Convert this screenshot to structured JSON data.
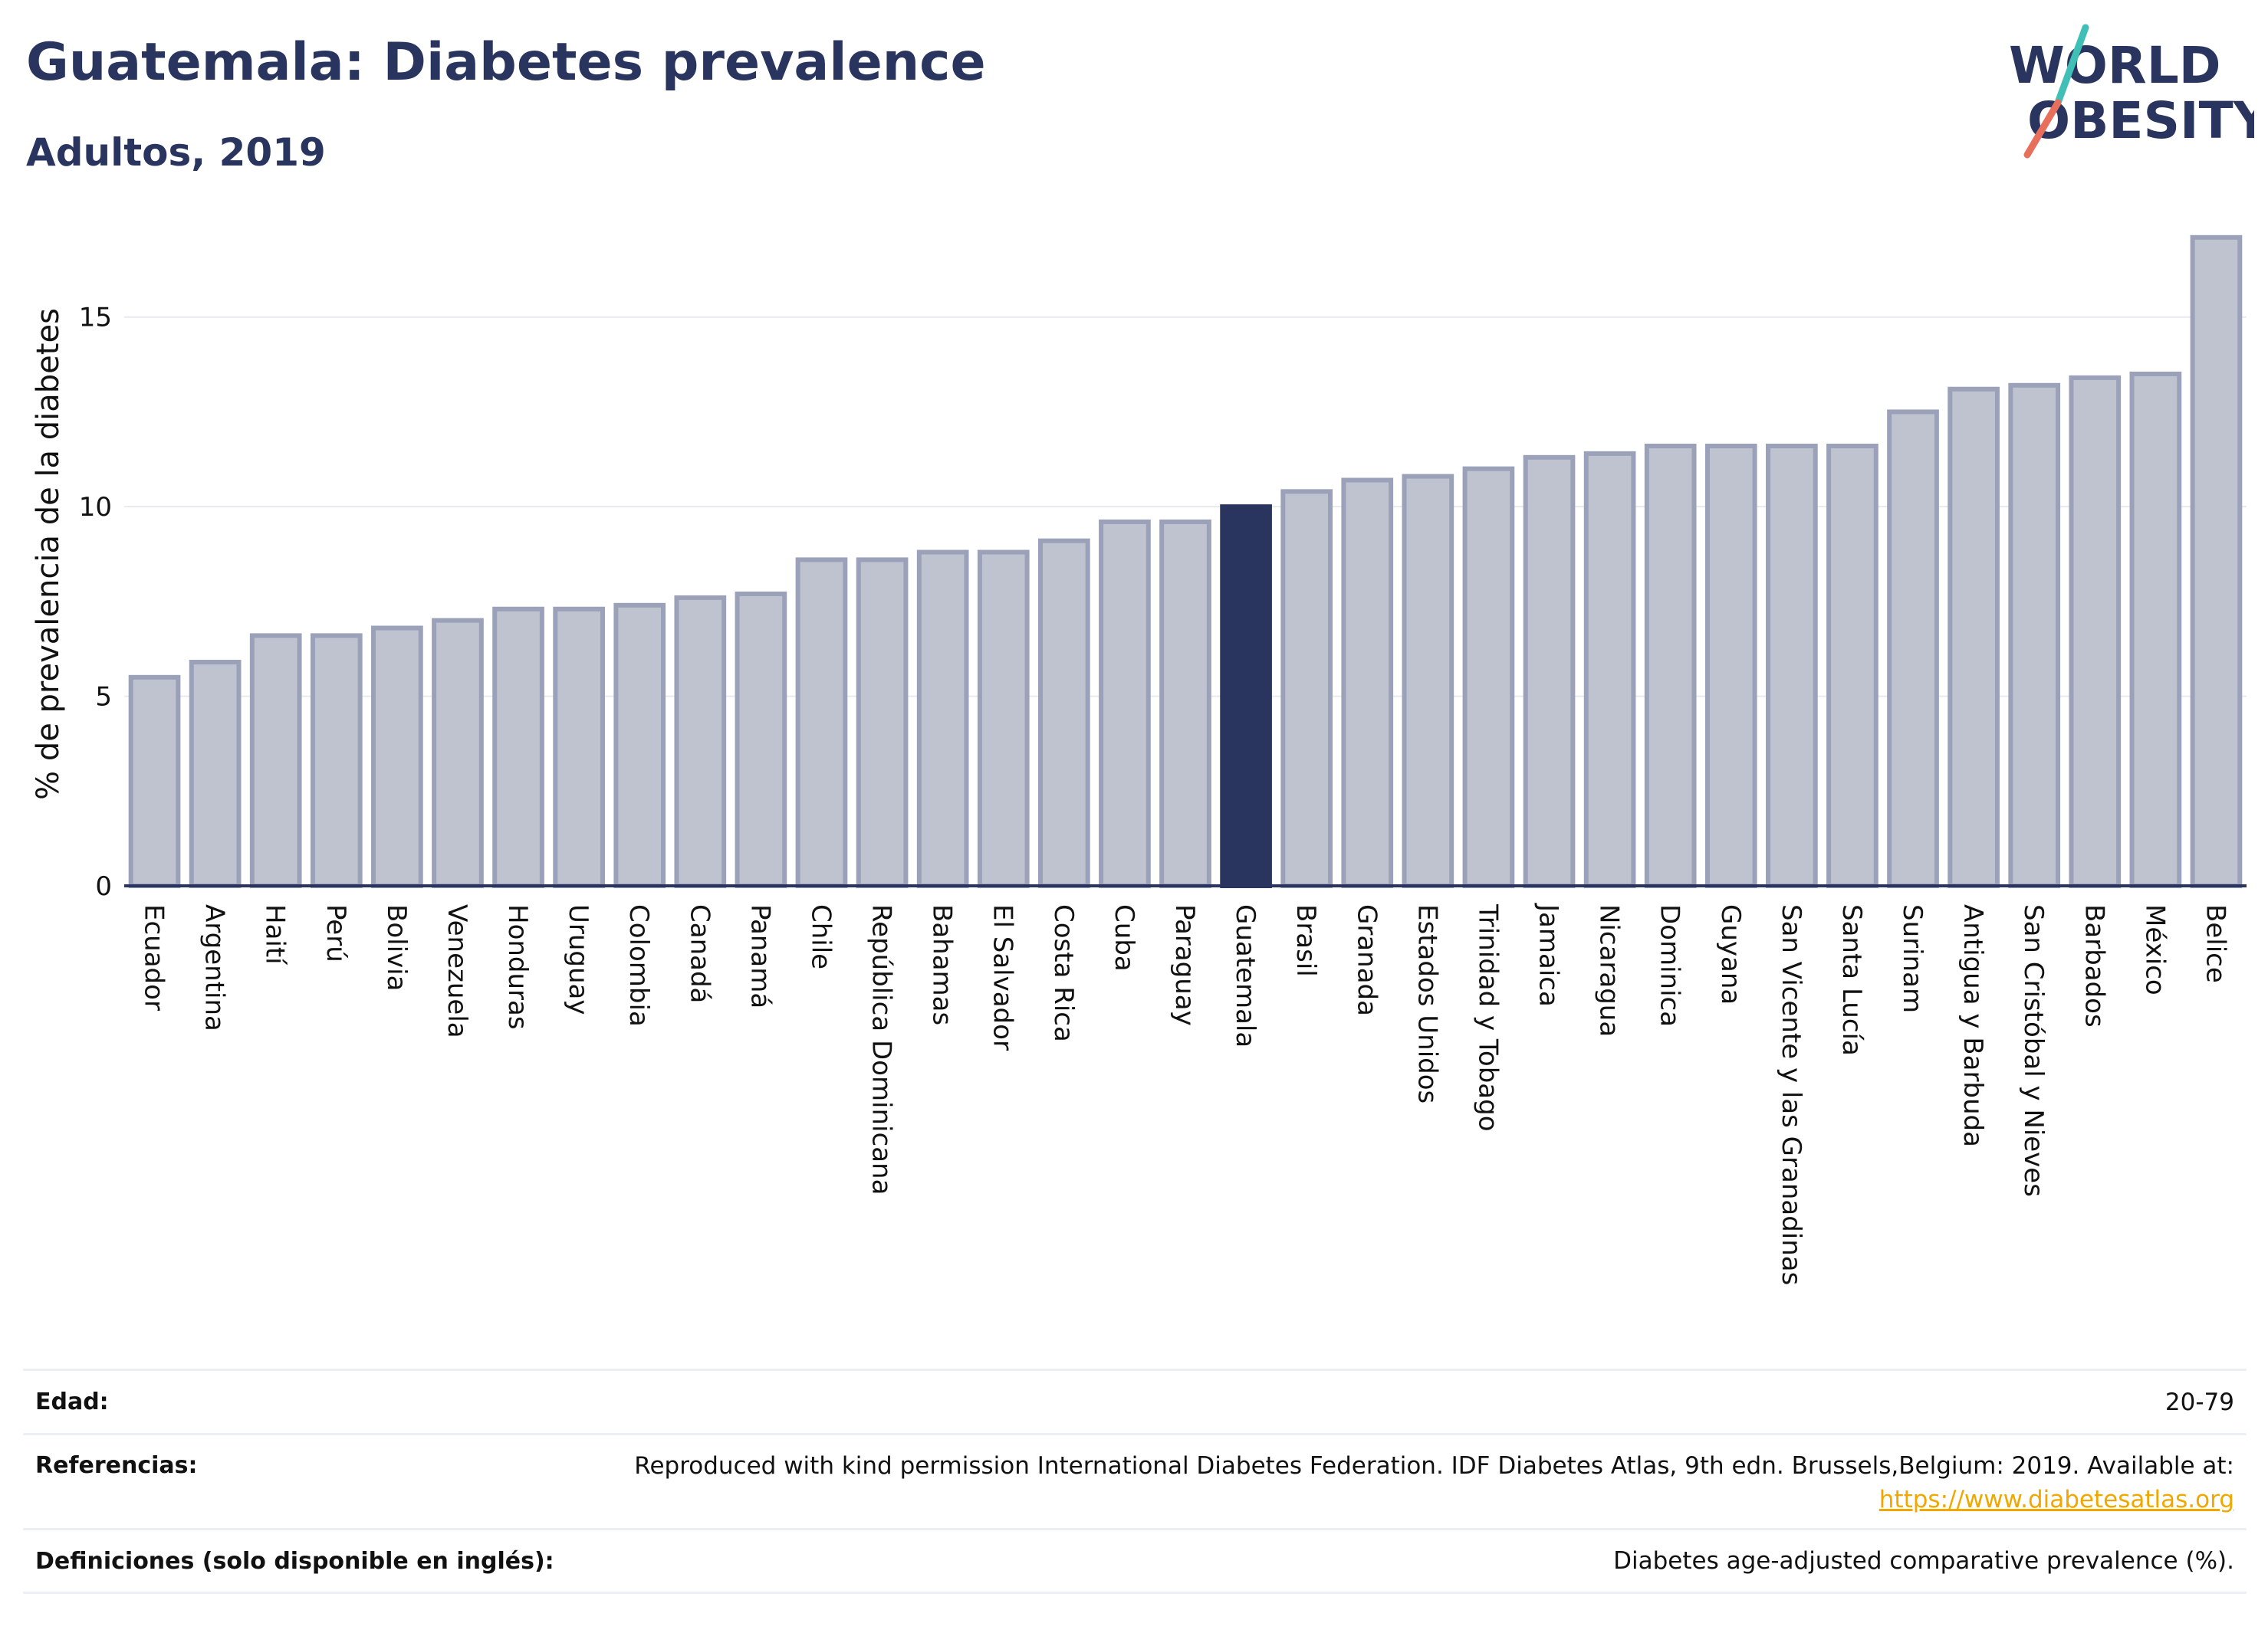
{
  "header": {
    "title": "Guatemala: Diabetes prevalence",
    "subtitle": "Adultos, 2019"
  },
  "logo": {
    "line1": "WORLD",
    "line2": "OBESITY",
    "colors": {
      "text": "#2a355f",
      "slash_teal": "#3fbfb6",
      "slash_coral": "#e96f5d"
    }
  },
  "chart_data": {
    "type": "bar",
    "title": "Guatemala: Diabetes prevalence",
    "subtitle": "Adultos, 2019",
    "xlabel": "",
    "ylabel": "% de prevalencia de la diabetes",
    "ylim": [
      0,
      17.5
    ],
    "yticks": [
      0,
      5,
      10,
      15
    ],
    "grid": true,
    "highlight": "Guatemala",
    "colors": {
      "bar": "#bfc3d0",
      "bar_border": "#9aa1b8",
      "highlight": "#2a355f",
      "grid": "#e8eaf0",
      "axis": "#2a355f"
    },
    "categories": [
      "Ecuador",
      "Argentina",
      "Haití",
      "Perú",
      "Bolivia",
      "Venezuela",
      "Honduras",
      "Uruguay",
      "Colombia",
      "Canadá",
      "Panamá",
      "Chile",
      "República Dominicana",
      "Bahamas",
      "El Salvador",
      "Costa Rica",
      "Cuba",
      "Paraguay",
      "Guatemala",
      "Brasil",
      "Granada",
      "Estados Unidos",
      "Trinidad y Tobago",
      "Jamaica",
      "Nicaragua",
      "Dominica",
      "Guyana",
      "San Vicente y las Granadinas",
      "Santa Lucía",
      "Surinam",
      "Antigua y Barbuda",
      "San Cristóbal y Nieves",
      "Barbados",
      "México",
      "Belice"
    ],
    "values": [
      5.5,
      5.9,
      6.6,
      6.6,
      6.8,
      7.0,
      7.3,
      7.3,
      7.4,
      7.6,
      7.7,
      8.6,
      8.6,
      8.8,
      8.8,
      9.1,
      9.6,
      9.6,
      10.0,
      10.4,
      10.7,
      10.8,
      11.0,
      11.3,
      11.4,
      11.6,
      11.6,
      11.6,
      11.6,
      12.5,
      13.1,
      13.2,
      13.4,
      13.5,
      17.1
    ]
  },
  "info": {
    "age_label": "Edad:",
    "age_value": "20-79",
    "references_label": "Referencias:",
    "references_text": "Reproduced with kind permission International Diabetes Federation. IDF Diabetes Atlas, 9th edn. Brussels,Belgium: 2019. Available at:",
    "references_link": "https://www.diabetesatlas.org",
    "definitions_label": "Definiciones (solo disponible en inglés):",
    "definitions_value": "Diabetes age-adjusted comparative prevalence (%)."
  }
}
